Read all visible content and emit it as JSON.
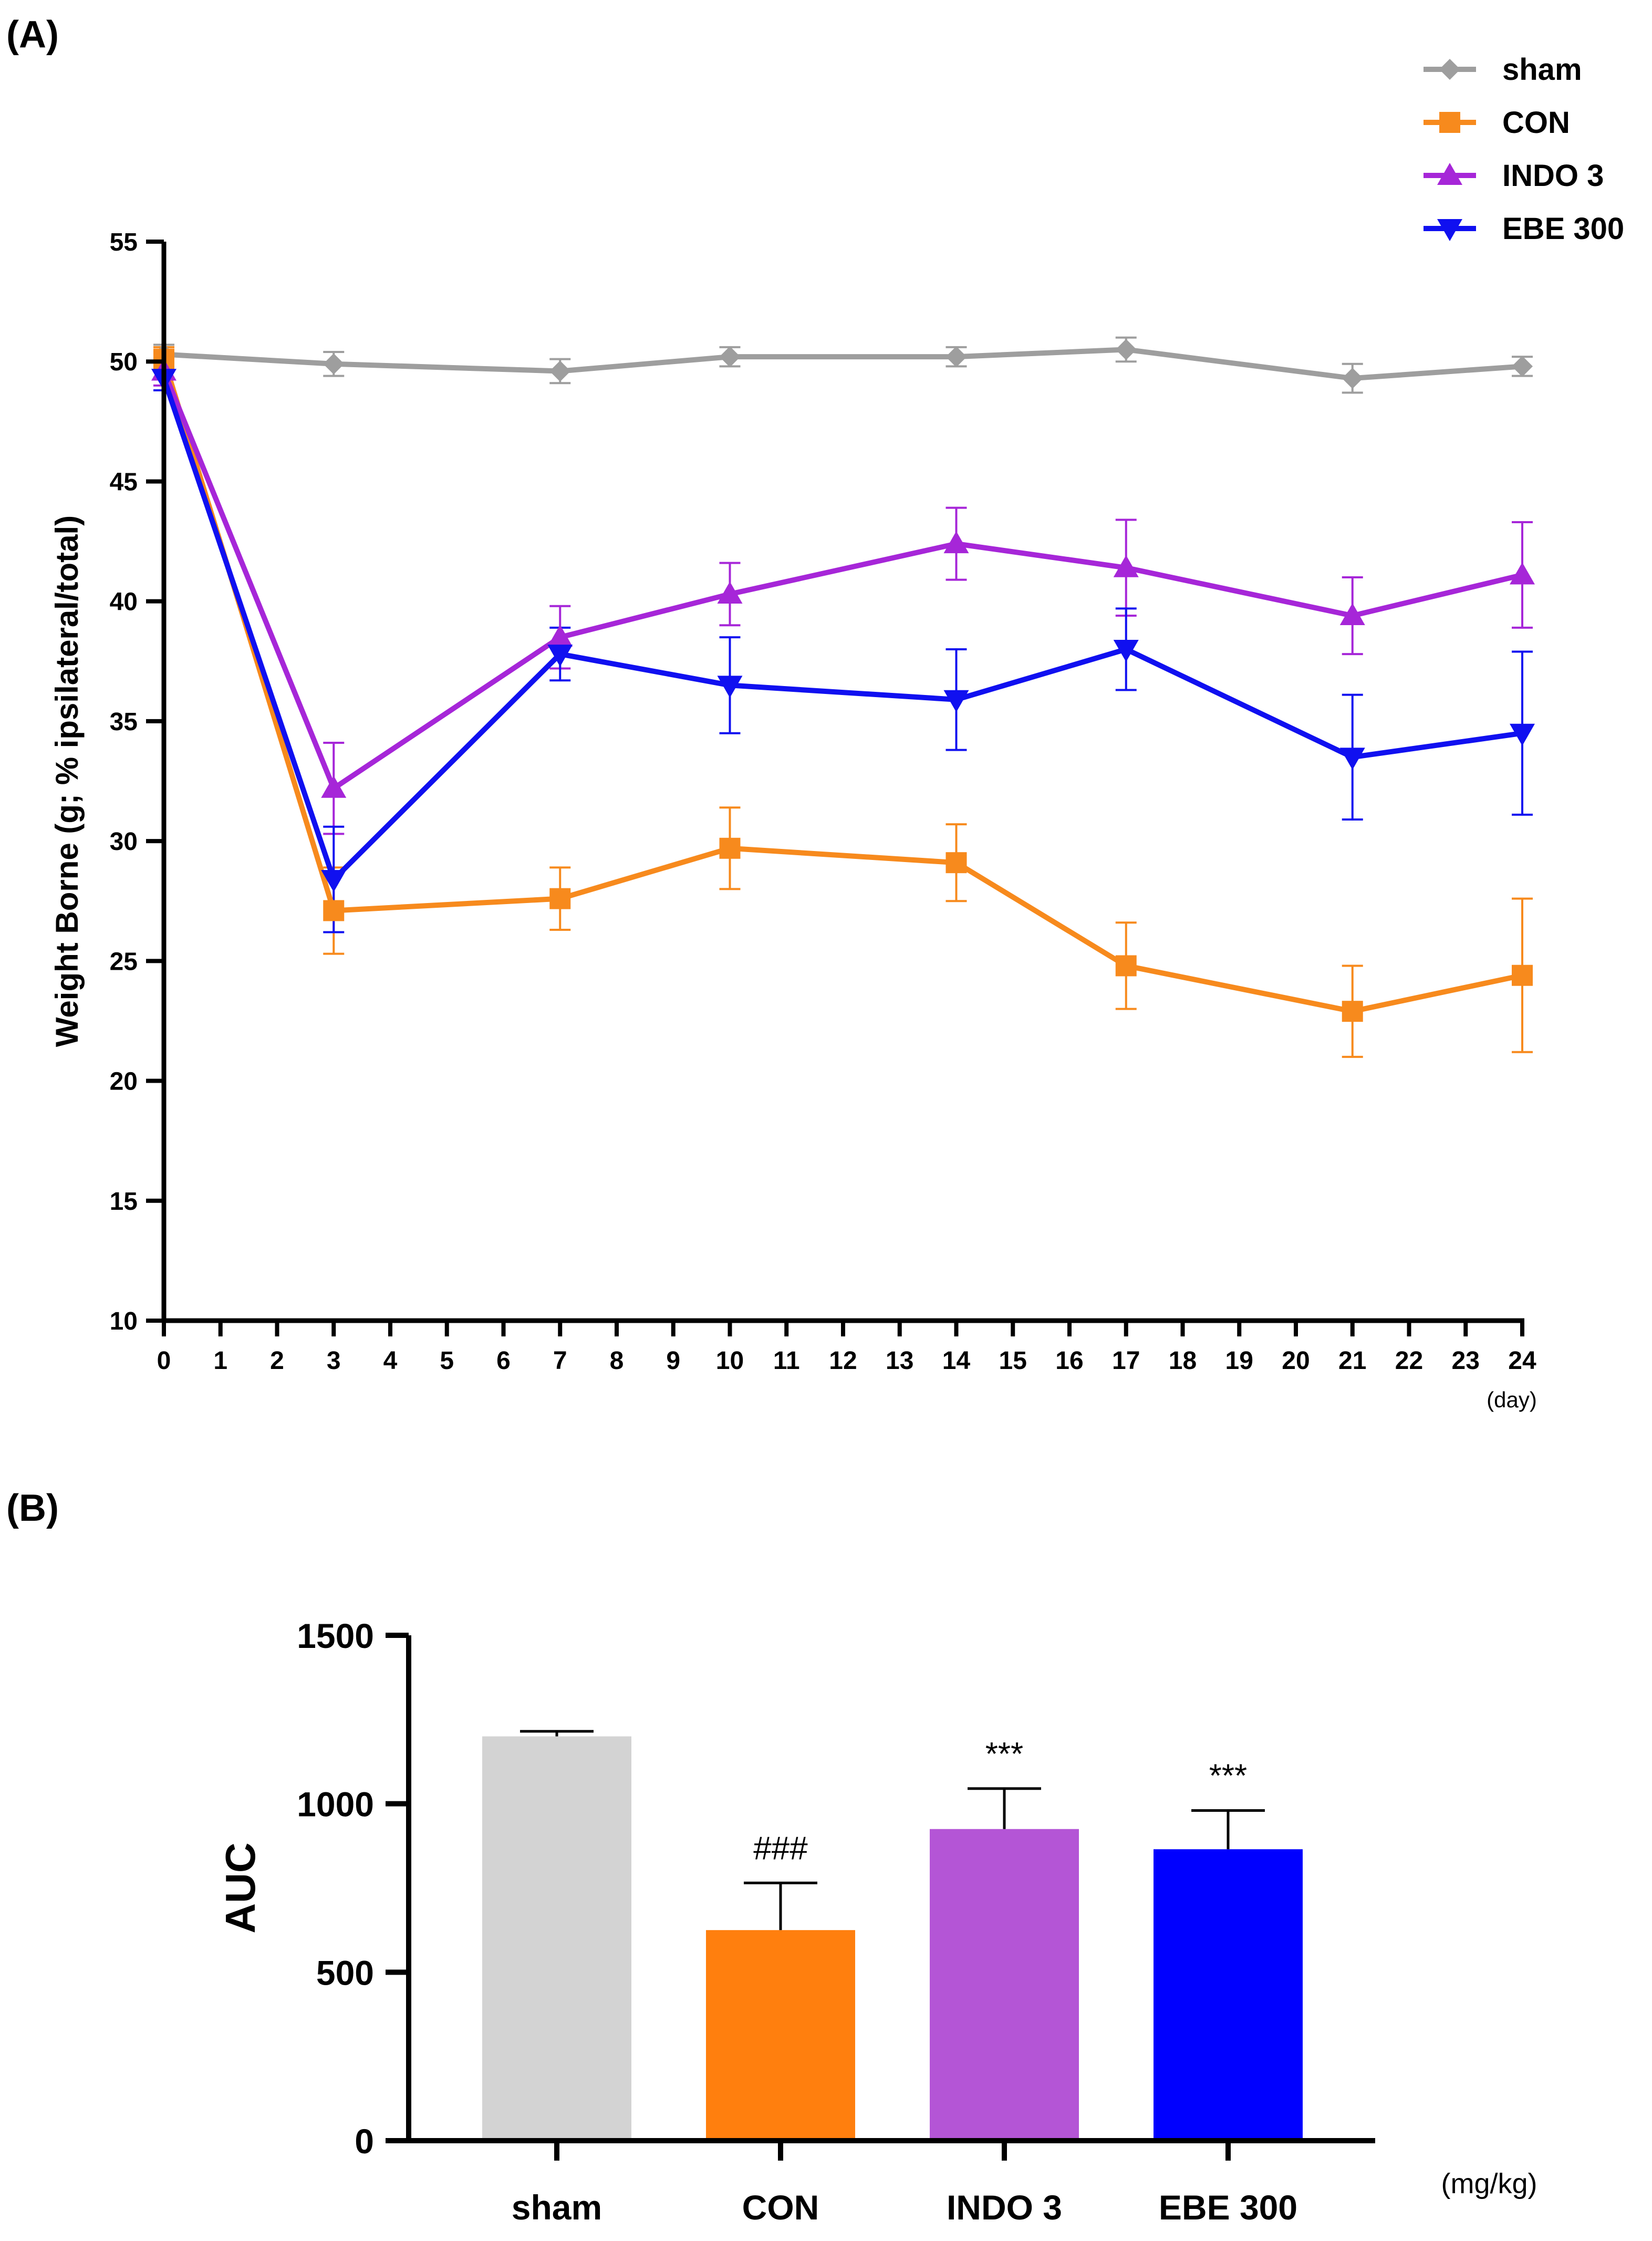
{
  "panel_a_label": "(A)",
  "panel_b_label": "(B)",
  "colors": {
    "sham": "#9e9e9e",
    "CON": "#f78a1d",
    "INDO 3": "#a626d8",
    "EBE 300": "#1010f0",
    "sham_bar": "#d3d3d3",
    "CON_bar": "#ff7f0e",
    "INDO 3_bar": "#b455d6",
    "EBE 300_bar": "#0000ff",
    "axis": "#000000"
  },
  "chart_data": [
    {
      "type": "line",
      "title": "",
      "xlabel": "",
      "x_unit_label": "(day)",
      "ylabel": "Weight Borne (g; % ipsilateral/total)",
      "xlim": [
        0,
        24
      ],
      "ylim": [
        10,
        55
      ],
      "x_ticks": [
        0,
        1,
        2,
        3,
        4,
        5,
        6,
        7,
        8,
        9,
        10,
        11,
        12,
        13,
        14,
        15,
        16,
        17,
        18,
        19,
        20,
        21,
        22,
        23,
        24
      ],
      "y_ticks": [
        10,
        15,
        20,
        25,
        30,
        35,
        40,
        45,
        50,
        55
      ],
      "legend_position": "top-right",
      "x": [
        0,
        3,
        7,
        10,
        14,
        17,
        21,
        24
      ],
      "series": [
        {
          "name": "sham",
          "marker": "diamond",
          "values": [
            50.3,
            49.9,
            49.6,
            50.2,
            50.2,
            50.5,
            49.3,
            49.8
          ],
          "errors": [
            0.4,
            0.5,
            0.5,
            0.4,
            0.4,
            0.5,
            0.6,
            0.4
          ]
        },
        {
          "name": "CON",
          "marker": "square",
          "values": [
            50.1,
            27.1,
            27.6,
            29.7,
            29.1,
            24.8,
            22.9,
            24.4
          ],
          "errors": [
            0.5,
            1.8,
            1.3,
            1.7,
            1.6,
            1.8,
            1.9,
            3.2
          ]
        },
        {
          "name": "INDO 3",
          "marker": "triangle-up",
          "values": [
            49.6,
            32.2,
            38.5,
            40.3,
            42.4,
            41.4,
            39.4,
            41.1
          ],
          "errors": [
            0.6,
            1.9,
            1.3,
            1.3,
            1.5,
            2.0,
            1.6,
            2.2
          ]
        },
        {
          "name": "EBE 300",
          "marker": "triangle-down",
          "values": [
            49.3,
            28.4,
            37.8,
            36.5,
            35.9,
            38.0,
            33.5,
            34.5
          ],
          "errors": [
            0.5,
            2.2,
            1.1,
            2.0,
            2.1,
            1.7,
            2.6,
            3.4
          ]
        }
      ]
    },
    {
      "type": "bar",
      "title": "",
      "xlabel": "",
      "x_unit_label": "(mg/kg)",
      "ylabel": "AUC",
      "ylim": [
        0,
        1500
      ],
      "y_ticks": [
        0,
        500,
        1000,
        1500
      ],
      "categories": [
        "sham",
        "CON",
        "INDO 3",
        "EBE 300"
      ],
      "values": [
        1200,
        625,
        925,
        865
      ],
      "errors": [
        15,
        140,
        120,
        115
      ],
      "annotations": [
        "",
        "###",
        "***",
        "***"
      ]
    }
  ]
}
